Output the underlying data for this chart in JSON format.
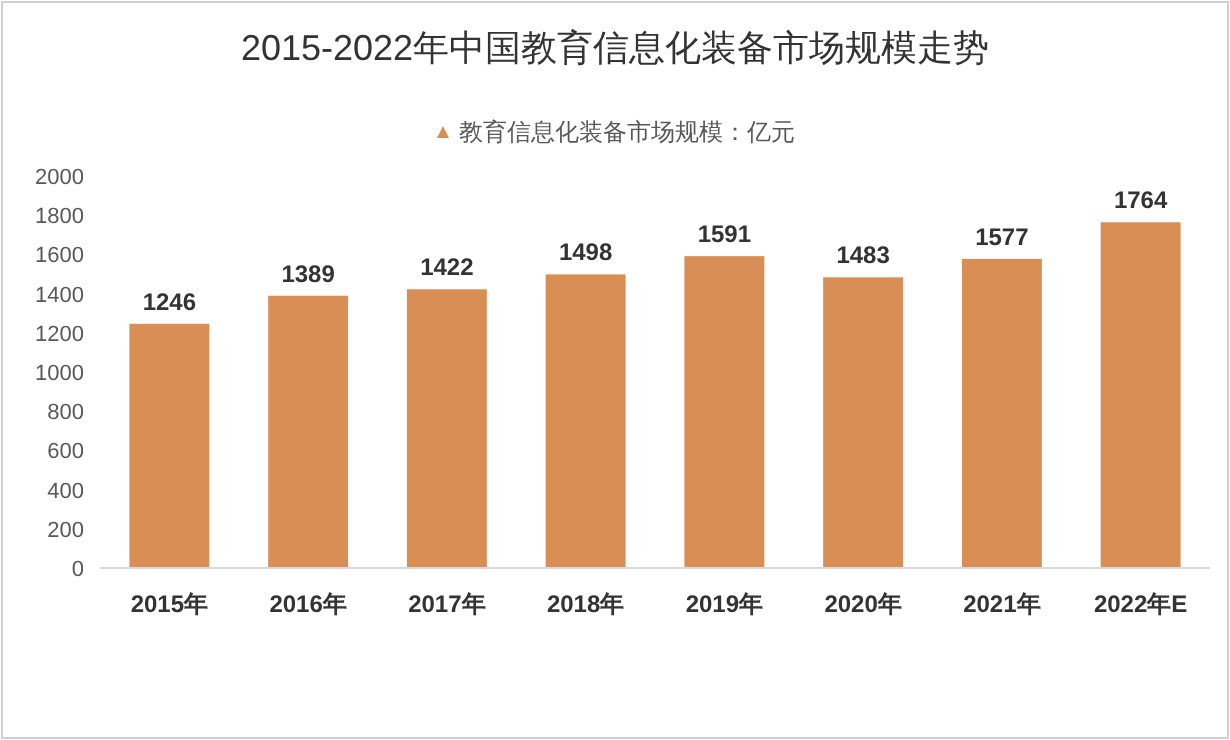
{
  "chart_data": {
    "type": "bar",
    "title": "2015-2022年中国教育信息化装备市场规模走势",
    "categories": [
      "2015年",
      "2016年",
      "2017年",
      "2018年",
      "2019年",
      "2020年",
      "2021年",
      "2022年E"
    ],
    "series": [
      {
        "name": "教育信息化装备市场规模：亿元",
        "color": "#d98e55",
        "values": [
          1246,
          1389,
          1422,
          1498,
          1591,
          1483,
          1577,
          1764
        ]
      }
    ],
    "ylim": [
      0,
      2000
    ],
    "yticks": [
      0,
      200,
      400,
      600,
      800,
      1000,
      1200,
      1400,
      1600,
      1800,
      2000
    ],
    "data_labels": true,
    "legend": "top",
    "marker": "triangle",
    "grid": false
  }
}
